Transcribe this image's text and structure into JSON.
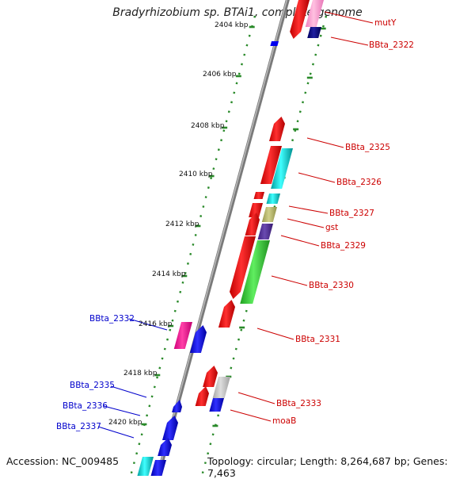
{
  "title": "Bradyrhizobium sp. BTAi1, complete genome",
  "footer": {
    "accession": "Accession: NC_009485",
    "summary": "Topology: circular; Length: 8,264,687 bp; Genes: 7,463"
  },
  "ticks": [
    "2404 kbp",
    "2406 kbp",
    "2408 kbp",
    "2410 kbp",
    "2412 kbp",
    "2414 kbp",
    "2416 kbp",
    "2418 kbp",
    "2420 kbp"
  ],
  "forward_labels": [
    "mutY",
    "BBta_2322",
    "BBta_2325",
    "BBta_2326",
    "BBta_2327",
    "gst",
    "BBta_2329",
    "BBta_2330",
    "BBta_2331",
    "BBta_2333",
    "moaB"
  ],
  "reverse_labels": [
    "BBta_2332",
    "BBta_2335",
    "BBta_2336",
    "BBta_2337"
  ],
  "colors": {
    "forward_label": "#cc0000",
    "reverse_label": "#0000cc",
    "backbone": "#888888",
    "tick": "#2a8a2a"
  }
}
